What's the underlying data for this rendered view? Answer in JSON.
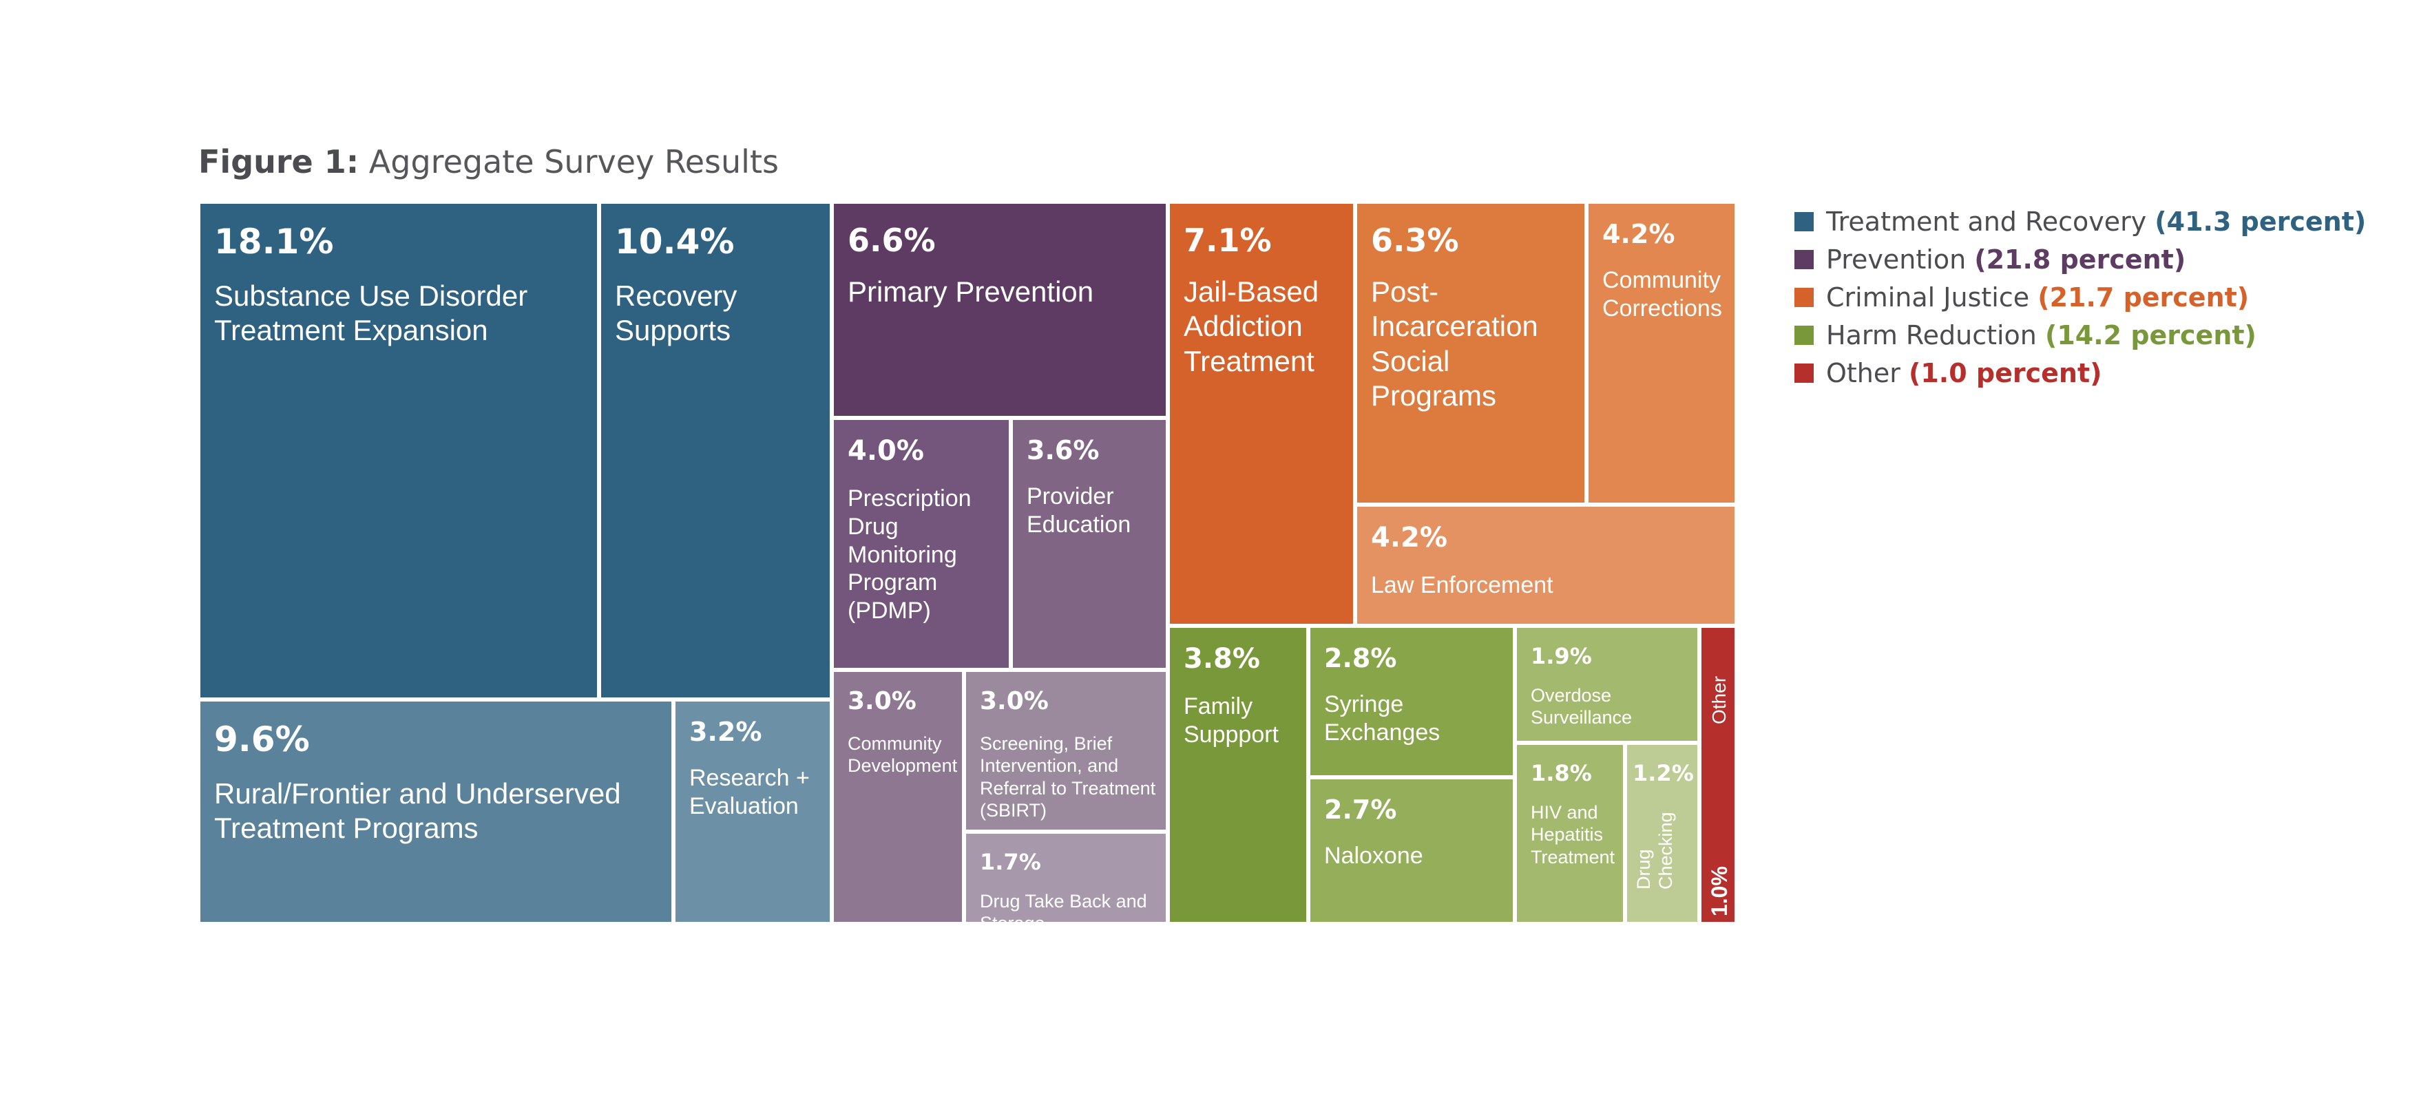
{
  "figure": {
    "title_bold": "Figure 1:",
    "title_rest": "Aggregate Survey Results"
  },
  "colors": {
    "treatment": [
      "#2f6281",
      "#5a829b",
      "#6c91a7"
    ],
    "prevention": [
      "#5e3b62",
      "#74557b",
      "#806684",
      "#8e7791",
      "#9b8a9e",
      "#a898ab"
    ],
    "justice": [
      "#d5622a",
      "#dd7a3e",
      "#e2874f",
      "#e59262"
    ],
    "harm": [
      "#78983a",
      "#88a649",
      "#94ae5a",
      "#a3b96e",
      "#bccc94"
    ],
    "other": "#b5302c"
  },
  "chart_data": {
    "type": "treemap",
    "title": "Figure 1: Aggregate Survey Results",
    "groups": [
      {
        "name": "Treatment and Recovery",
        "value": 41.3,
        "value_text": "(41.3 percent)",
        "color": "#2f6281",
        "items": [
          {
            "pct": "18.1%",
            "label": "Substance Use Disorder Treatment Expansion",
            "value": 18.1
          },
          {
            "pct": "10.4%",
            "label": "Recovery Supports",
            "value": 10.4
          },
          {
            "pct": "9.6%",
            "label": "Rural/Frontier and Underserved Treatment Programs",
            "value": 9.6
          },
          {
            "pct": "3.2%",
            "label": "Research + Evaluation",
            "value": 3.2
          }
        ]
      },
      {
        "name": "Prevention",
        "value": 21.8,
        "value_text": "(21.8 percent)",
        "color": "#5e3b62",
        "items": [
          {
            "pct": "6.6%",
            "label": "Primary Prevention",
            "value": 6.6
          },
          {
            "pct": "4.0%",
            "label": "Prescription Drug Monitoring Program (PDMP)",
            "value": 4.0
          },
          {
            "pct": "3.6%",
            "label": "Provider Education",
            "value": 3.6
          },
          {
            "pct": "3.0%",
            "label": "Community Development",
            "value": 3.0
          },
          {
            "pct": "3.0%",
            "label": "Screening, Brief Intervention, and Referral to Treatment (SBIRT)",
            "value": 3.0
          },
          {
            "pct": "1.7%",
            "label": "Drug Take Back and Storage",
            "value": 1.7
          }
        ]
      },
      {
        "name": "Criminal Justice",
        "value": 21.7,
        "value_text": "(21.7 percent)",
        "color": "#d5622a",
        "items": [
          {
            "pct": "7.1%",
            "label": "Jail-Based Addiction Treatment",
            "value": 7.1
          },
          {
            "pct": "6.3%",
            "label": "Post-Incarceration Social Programs",
            "value": 6.3
          },
          {
            "pct": "4.2%",
            "label": "Community Corrections",
            "value": 4.2
          },
          {
            "pct": "4.2%",
            "label": "Law Enforcement",
            "value": 4.2
          }
        ]
      },
      {
        "name": "Harm Reduction",
        "value": 14.2,
        "value_text": "(14.2 percent)",
        "color": "#78983a",
        "items": [
          {
            "pct": "3.8%",
            "label": "Family Suppport",
            "value": 3.8
          },
          {
            "pct": "2.8%",
            "label": "Syringe Exchanges",
            "value": 2.8
          },
          {
            "pct": "1.9%",
            "label": "Overdose Surveillance",
            "value": 1.9
          },
          {
            "pct": "2.7%",
            "label": "Naloxone",
            "value": 2.7
          },
          {
            "pct": "1.8%",
            "label": "HIV and Hepatitis Treatment",
            "value": 1.8
          },
          {
            "pct": "1.2%",
            "label": "Drug Checking",
            "value": 1.2
          }
        ]
      },
      {
        "name": "Other",
        "value": 1.0,
        "value_text": "(1.0 percent)",
        "color": "#b5302c",
        "items": [
          {
            "pct": "1.0%",
            "label": "Other",
            "value": 1.0
          }
        ]
      }
    ],
    "legend_position": "right"
  }
}
